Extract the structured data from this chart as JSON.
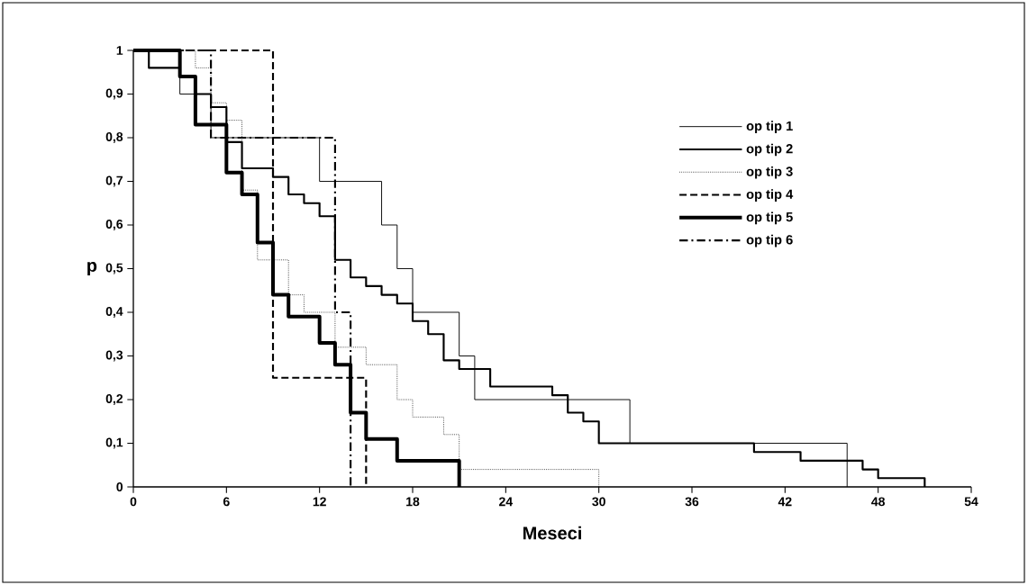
{
  "chart_data": {
    "type": "step",
    "xlabel": "Meseci",
    "ylabel": "p",
    "xlim": [
      0,
      54
    ],
    "xticks": [
      0,
      6,
      12,
      18,
      24,
      30,
      36,
      42,
      48,
      54
    ],
    "ylim": [
      0,
      1
    ],
    "yticks": [
      0,
      {
        "value": 0.1,
        "label": "0,1"
      },
      {
        "value": 0.2,
        "label": "0,2"
      },
      {
        "value": 0.3,
        "label": "0,3"
      },
      {
        "value": 0.4,
        "label": "0,4"
      },
      {
        "value": 0.5,
        "label": "0,5"
      },
      {
        "value": 0.6,
        "label": "0,6"
      },
      {
        "value": 0.7,
        "label": "0,7"
      },
      {
        "value": 0.8,
        "label": "0,8"
      },
      {
        "value": 0.9,
        "label": "0,9"
      },
      1
    ],
    "legend": "top right",
    "series": [
      {
        "name": "op tip 1",
        "color": "#000000",
        "line_style": "solid",
        "x": [
          0,
          3,
          5,
          12,
          16,
          17,
          18,
          21,
          22,
          32,
          46
        ],
        "values": [
          1,
          0.9,
          0.8,
          0.7,
          0.6,
          0.5,
          0.4,
          0.3,
          0.2,
          0.1,
          0
        ]
      },
      {
        "name": "op tip 2",
        "color": "#000000",
        "line_style": "solid",
        "x": [
          0,
          1,
          3,
          4,
          5,
          6,
          7,
          9,
          10,
          11,
          12,
          13,
          14,
          15,
          16,
          17,
          18,
          19,
          20,
          21,
          23,
          27,
          28,
          29,
          30,
          40,
          43,
          47,
          48,
          51
        ],
        "values": [
          1,
          0.96,
          0.94,
          0.9,
          0.87,
          0.79,
          0.73,
          0.71,
          0.67,
          0.65,
          0.62,
          0.52,
          0.48,
          0.46,
          0.44,
          0.42,
          0.38,
          0.35,
          0.29,
          0.27,
          0.23,
          0.21,
          0.17,
          0.15,
          0.1,
          0.08,
          0.06,
          0.04,
          0.02,
          0
        ]
      },
      {
        "name": "op tip 3",
        "color": "#000000",
        "line_style": "dotted",
        "x": [
          0,
          4,
          5,
          6,
          7,
          8,
          10,
          11,
          13,
          15,
          17,
          18,
          20,
          21,
          30
        ],
        "values": [
          1,
          0.96,
          0.88,
          0.84,
          0.68,
          0.52,
          0.44,
          0.4,
          0.32,
          0.28,
          0.2,
          0.16,
          0.12,
          0.04,
          0
        ]
      },
      {
        "name": "op tip 4",
        "color": "#000000",
        "line_style": "dashed",
        "x": [
          0,
          9,
          15
        ],
        "values": [
          1,
          0.25,
          0
        ]
      },
      {
        "name": "op tip 5",
        "color": "#000000",
        "line_style": "solid",
        "x": [
          0,
          3,
          4,
          6,
          7,
          8,
          9,
          10,
          12,
          13,
          14,
          15,
          17,
          21
        ],
        "values": [
          1,
          0.94,
          0.83,
          0.72,
          0.67,
          0.56,
          0.44,
          0.39,
          0.33,
          0.28,
          0.17,
          0.11,
          0.06,
          0
        ]
      },
      {
        "name": "op tip 6",
        "color": "#000000",
        "line_style": "dashdot",
        "x": [
          0,
          5,
          13,
          14
        ],
        "values": [
          1,
          0.8,
          0.4,
          0
        ]
      }
    ]
  }
}
